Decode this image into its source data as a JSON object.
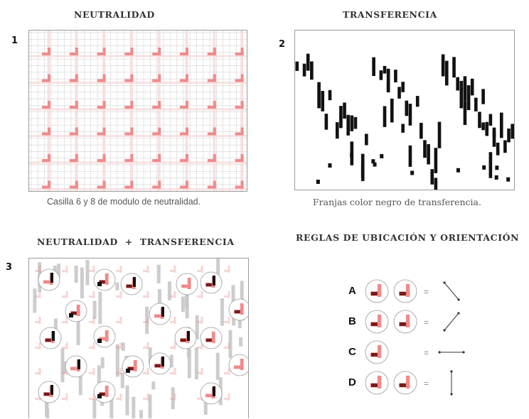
{
  "panels": [
    {
      "number": "1",
      "heading": "NEUTRALIDAD",
      "caption": "Casilla 6 y 8 de modulo de neutralidad."
    },
    {
      "number": "2",
      "heading": "TRANSFERENCIA",
      "caption": "Franjas color negro de transferencia."
    },
    {
      "number": "3",
      "heading": "NEUTRALIDAD  +  TRANSFERENCIA"
    },
    {
      "heading": "REGLAS DE UBICACIÓN Y ORIENTACIÓN"
    }
  ],
  "rules": [
    {
      "letter": "A",
      "equals": "=",
      "direction": "diagonal-down-right"
    },
    {
      "letter": "B",
      "equals": "=",
      "direction": "diagonal-up-right"
    },
    {
      "letter": "C",
      "equals": "=",
      "direction": "horizontal"
    },
    {
      "letter": "D",
      "equals": "=",
      "direction": "vertical"
    }
  ],
  "colors": {
    "pink": "#f08a8a",
    "dark_red": "#7a1a1a",
    "black": "#111111",
    "grid": "#d8d8d8",
    "frame": "#9a9a9a"
  }
}
